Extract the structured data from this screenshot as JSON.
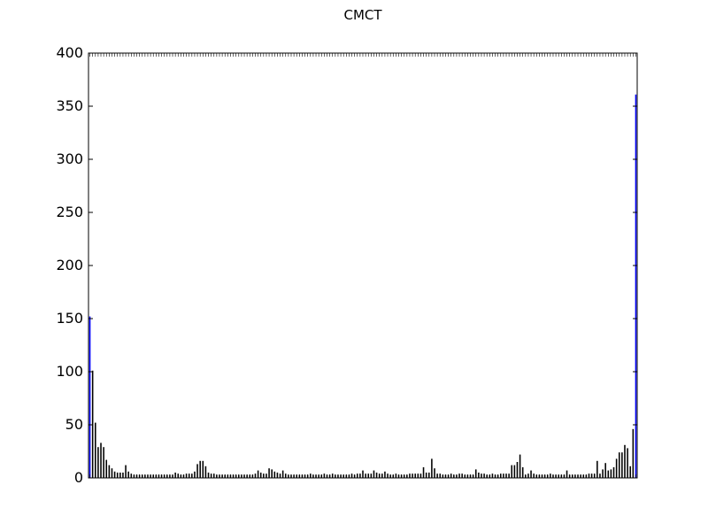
{
  "chart_data": {
    "type": "bar",
    "title": "CMCT",
    "xlabel": "",
    "ylabel": "",
    "ylim": [
      0,
      400
    ],
    "yticks": [
      0,
      50,
      100,
      150,
      200,
      250,
      300,
      350,
      400
    ],
    "grid": false,
    "legend": "none",
    "values": [
      152,
      101,
      52,
      29,
      33,
      29,
      17,
      12,
      9,
      6,
      5,
      5,
      5,
      12,
      6,
      4,
      3,
      3,
      3,
      3,
      3,
      3,
      3,
      3,
      3,
      3,
      3,
      3,
      3,
      3,
      3,
      5,
      4,
      3,
      3,
      4,
      4,
      4,
      6,
      13,
      16,
      16,
      11,
      5,
      4,
      4,
      3,
      3,
      3,
      3,
      3,
      3,
      3,
      3,
      3,
      3,
      3,
      3,
      3,
      3,
      4,
      7,
      5,
      4,
      4,
      9,
      8,
      6,
      5,
      4,
      7,
      4,
      3,
      3,
      3,
      3,
      3,
      3,
      3,
      3,
      4,
      3,
      3,
      3,
      3,
      4,
      3,
      3,
      4,
      3,
      3,
      3,
      3,
      3,
      3,
      4,
      3,
      4,
      4,
      7,
      4,
      4,
      4,
      7,
      5,
      4,
      4,
      6,
      4,
      3,
      3,
      4,
      3,
      3,
      3,
      3,
      4,
      4,
      4,
      4,
      4,
      10,
      5,
      5,
      18,
      9,
      4,
      4,
      3,
      3,
      3,
      4,
      3,
      3,
      4,
      4,
      3,
      3,
      3,
      3,
      8,
      5,
      4,
      4,
      3,
      3,
      4,
      3,
      3,
      4,
      4,
      4,
      4,
      12,
      12,
      15,
      22,
      10,
      3,
      4,
      7,
      4,
      3,
      3,
      3,
      3,
      3,
      4,
      3,
      3,
      3,
      3,
      3,
      7,
      3,
      3,
      3,
      3,
      3,
      3,
      3,
      4,
      4,
      4,
      16,
      4,
      8,
      14,
      7,
      8,
      10,
      18,
      24,
      24,
      31,
      28,
      11,
      46,
      361
    ],
    "colors": {
      "highlight": "#0000ff",
      "default": "#000000",
      "axis": "#000000"
    },
    "highlight_bars": [
      0,
      198
    ]
  }
}
